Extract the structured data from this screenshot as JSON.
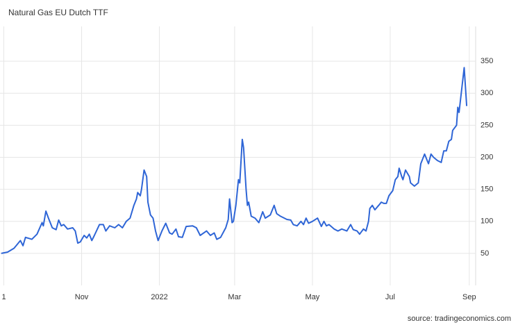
{
  "chart_data": {
    "type": "line",
    "title": "Natural Gas EU Dutch TTF",
    "source": "source: tradingeconomics.com",
    "series": [
      {
        "color": "#2e65d6",
        "x": [
          -2,
          3,
          8,
          13,
          15,
          17,
          22,
          26,
          30,
          31,
          33,
          35,
          38,
          41,
          43,
          45,
          47,
          50,
          54,
          56,
          58,
          60,
          63,
          65,
          67,
          69,
          71,
          75,
          78,
          80,
          83,
          87,
          90,
          93,
          96,
          99,
          102,
          104,
          105,
          107,
          108,
          110,
          112,
          113,
          115,
          117,
          119,
          121,
          124,
          127,
          130,
          132,
          135,
          137,
          140,
          143,
          148,
          151,
          154,
          159,
          162,
          165,
          167,
          170,
          174,
          176,
          177,
          179,
          180,
          182,
          184,
          185,
          187,
          188,
          190,
          191,
          192,
          194,
          197,
          200,
          203,
          205,
          209,
          212,
          214,
          217,
          222,
          225,
          227,
          230,
          233,
          235,
          237,
          239,
          242,
          246,
          249,
          251,
          253,
          255,
          259,
          262,
          265,
          269,
          272,
          274,
          277,
          279,
          282,
          284,
          286,
          287,
          289,
          291,
          294,
          296,
          298,
          300,
          302,
          305,
          307,
          309,
          310,
          312,
          313,
          315,
          318,
          319,
          322,
          325,
          327,
          330,
          332,
          333,
          335,
          337,
          340,
          343,
          345,
          347,
          349,
          351,
          352,
          355,
          356,
          357,
          359,
          361,
          363
        ],
        "values": [
          50,
          52,
          58,
          70,
          62,
          75,
          72,
          80,
          98,
          93,
          116,
          105,
          90,
          87,
          102,
          93,
          95,
          88,
          90,
          85,
          66,
          68,
          78,
          74,
          80,
          70,
          78,
          95,
          95,
          85,
          93,
          90,
          95,
          90,
          100,
          105,
          125,
          135,
          145,
          140,
          150,
          180,
          170,
          130,
          110,
          105,
          85,
          70,
          85,
          97,
          82,
          80,
          88,
          76,
          75,
          92,
          93,
          90,
          78,
          85,
          78,
          82,
          72,
          75,
          90,
          103,
          135,
          98,
          100,
          125,
          165,
          160,
          228,
          215,
          150,
          125,
          130,
          108,
          105,
          98,
          115,
          105,
          110,
          125,
          112,
          108,
          103,
          102,
          95,
          93,
          100,
          95,
          105,
          97,
          100,
          105,
          92,
          100,
          93,
          95,
          88,
          85,
          88,
          85,
          95,
          87,
          85,
          80,
          88,
          85,
          100,
          120,
          125,
          118,
          125,
          130,
          128,
          128,
          140,
          148,
          165,
          170,
          183,
          170,
          165,
          180,
          170,
          160,
          155,
          160,
          190,
          205,
          195,
          190,
          205,
          200,
          195,
          192,
          210,
          210,
          225,
          228,
          242,
          250,
          278,
          270,
          305,
          340,
          280
        ]
      }
    ],
    "xlim": [
      -3,
      370
    ],
    "xticks": [
      {
        "value": 0,
        "label": "1"
      },
      {
        "value": 61,
        "label": "Nov"
      },
      {
        "value": 122,
        "label": "2022"
      },
      {
        "value": 181,
        "label": "Mar"
      },
      {
        "value": 242,
        "label": "May"
      },
      {
        "value": 303,
        "label": "Jul"
      },
      {
        "value": 365,
        "label": "Sep"
      }
    ],
    "ylim": [
      0,
      400
    ],
    "yticks": [
      50,
      100,
      150,
      200,
      250,
      300,
      350
    ],
    "grid": true
  }
}
